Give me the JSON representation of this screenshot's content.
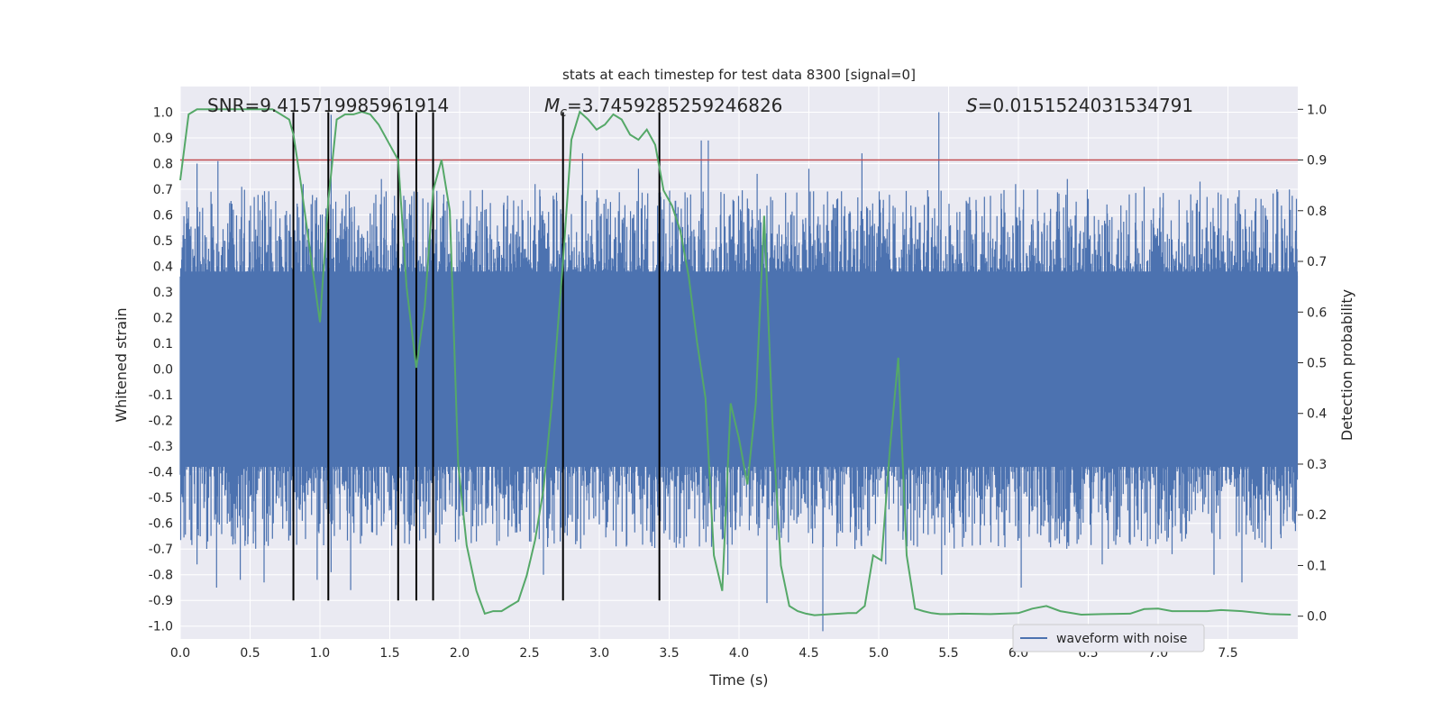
{
  "chart_data": {
    "type": "line",
    "title": "stats at each timestep for test data 8300 [signal=0]",
    "xlabel": "Time (s)",
    "ylabel": "Whitened strain",
    "y2label": "Detection probability",
    "xlim": [
      0.0,
      8.0
    ],
    "ylim": [
      -1.05,
      1.1
    ],
    "y2lim": [
      -0.045,
      1.045
    ],
    "xticks": [
      "0.0",
      "0.5",
      "1.0",
      "1.5",
      "2.0",
      "2.5",
      "3.0",
      "3.5",
      "4.0",
      "4.5",
      "5.0",
      "5.5",
      "6.0",
      "6.5",
      "7.0",
      "7.5"
    ],
    "yticks": [
      "-1.0",
      "-0.9",
      "-0.8",
      "-0.7",
      "-0.6",
      "-0.5",
      "-0.4",
      "-0.3",
      "-0.2",
      "-0.1",
      "0.0",
      "0.1",
      "0.2",
      "0.3",
      "0.4",
      "0.5",
      "0.6",
      "0.7",
      "0.8",
      "0.9",
      "1.0"
    ],
    "y2ticks": [
      "0.0",
      "0.1",
      "0.2",
      "0.3",
      "0.4",
      "0.5",
      "0.6",
      "0.7",
      "0.8",
      "0.9",
      "1.0"
    ],
    "grid": true,
    "legend": {
      "placement": "lower-center-right",
      "entries": [
        "waveform with noise"
      ]
    },
    "annotations": {
      "snr": "SNR=9.415719985961914",
      "mc_symbol": "M",
      "mc_sub": "c",
      "mc_value": "=3.7459285259246826",
      "s_symbol": "S",
      "s_value": "=0.0151524031534791"
    },
    "threshold": {
      "value": 0.9,
      "axis": "y2",
      "color": "#c44e52"
    },
    "markers": [
      0.81,
      1.06,
      1.56,
      1.69,
      1.81,
      2.74,
      3.43
    ],
    "marker_range": [
      -0.9,
      1.0
    ],
    "colors": {
      "waveform": "#4c72b0",
      "probability": "#55a868",
      "threshold": "#c44e52",
      "markers": "#000000",
      "background": "#eaeaf2"
    },
    "series": [
      {
        "name": "waveform with noise",
        "axis": "y",
        "envelope_notes": "dense noisy waveform; core amplitude about 0.4, spikes up to about 1.0",
        "peaks": [
          [
            0.06,
            0.63
          ],
          [
            0.12,
            0.8
          ],
          [
            0.27,
            0.81
          ],
          [
            0.44,
            0.71
          ],
          [
            0.53,
            0.67
          ],
          [
            0.88,
            0.72
          ],
          [
            1.08,
            0.99
          ],
          [
            1.44,
            0.74
          ],
          [
            2.18,
            0.62
          ],
          [
            2.54,
            0.72
          ],
          [
            2.88,
            0.84
          ],
          [
            3.28,
            0.78
          ],
          [
            3.43,
            0.75
          ],
          [
            3.73,
            0.89
          ],
          [
            3.78,
            0.89
          ],
          [
            4.13,
            0.76
          ],
          [
            4.5,
            0.78
          ],
          [
            4.88,
            0.84
          ],
          [
            5.43,
            1.0
          ],
          [
            5.98,
            0.72
          ],
          [
            6.35,
            0.74
          ],
          [
            6.9,
            0.71
          ],
          [
            7.3,
            0.73
          ],
          [
            7.45,
            0.68
          ],
          [
            7.85,
            0.7
          ]
        ],
        "troughs": [
          [
            0.12,
            -0.76
          ],
          [
            0.26,
            -0.85
          ],
          [
            0.43,
            -0.82
          ],
          [
            0.6,
            -0.83
          ],
          [
            0.98,
            -0.82
          ],
          [
            1.08,
            -0.79
          ],
          [
            1.22,
            -0.86
          ],
          [
            2.6,
            -0.8
          ],
          [
            3.92,
            -0.8
          ],
          [
            4.2,
            -0.91
          ],
          [
            4.6,
            -1.02
          ],
          [
            5.05,
            -0.76
          ],
          [
            5.45,
            -0.8
          ],
          [
            6.02,
            -0.85
          ],
          [
            6.6,
            -0.76
          ],
          [
            7.1,
            -0.72
          ],
          [
            7.4,
            -0.8
          ],
          [
            7.6,
            -0.83
          ]
        ]
      },
      {
        "name": "",
        "axis": "y2",
        "x": [
          0.0,
          0.06,
          0.12,
          0.18,
          0.24,
          0.3,
          0.36,
          0.42,
          0.48,
          0.54,
          0.6,
          0.66,
          0.72,
          0.78,
          0.81,
          0.86,
          0.93,
          1.0,
          1.06,
          1.12,
          1.18,
          1.24,
          1.3,
          1.36,
          1.42,
          1.5,
          1.56,
          1.62,
          1.69,
          1.75,
          1.81,
          1.87,
          1.93,
          1.99,
          2.05,
          2.12,
          2.18,
          2.24,
          2.3,
          2.36,
          2.42,
          2.48,
          2.54,
          2.6,
          2.66,
          2.74,
          2.8,
          2.86,
          2.92,
          2.98,
          3.04,
          3.1,
          3.16,
          3.22,
          3.28,
          3.34,
          3.4,
          3.46,
          3.52,
          3.58,
          3.64,
          3.7,
          3.76,
          3.82,
          3.88,
          3.94,
          4.0,
          4.06,
          4.12,
          4.18,
          4.24,
          4.3,
          4.36,
          4.42,
          4.48,
          4.54,
          4.6,
          4.66,
          4.72,
          4.78,
          4.84,
          4.9,
          4.96,
          5.02,
          5.08,
          5.14,
          5.2,
          5.26,
          5.32,
          5.38,
          5.44,
          5.5,
          5.6,
          5.8,
          6.0,
          6.1,
          6.2,
          6.3,
          6.45,
          6.6,
          6.8,
          6.9,
          7.0,
          7.1,
          7.2,
          7.35,
          7.45,
          7.6,
          7.8,
          7.95
        ],
        "y": [
          0.86,
          0.99,
          1.0,
          1.0,
          1.0,
          1.0,
          1.0,
          1.0,
          1.0,
          1.0,
          1.0,
          1.0,
          0.99,
          0.98,
          0.95,
          0.86,
          0.72,
          0.58,
          0.82,
          0.98,
          0.99,
          0.99,
          0.995,
          0.99,
          0.97,
          0.93,
          0.9,
          0.65,
          0.49,
          0.61,
          0.84,
          0.9,
          0.8,
          0.3,
          0.14,
          0.05,
          0.005,
          0.01,
          0.01,
          0.02,
          0.03,
          0.08,
          0.15,
          0.25,
          0.42,
          0.7,
          0.94,
          0.995,
          0.98,
          0.96,
          0.97,
          0.99,
          0.98,
          0.95,
          0.94,
          0.96,
          0.93,
          0.84,
          0.81,
          0.76,
          0.67,
          0.54,
          0.43,
          0.12,
          0.05,
          0.42,
          0.35,
          0.26,
          0.42,
          0.79,
          0.38,
          0.1,
          0.02,
          0.01,
          0.005,
          0.002,
          0.003,
          0.004,
          0.005,
          0.006,
          0.006,
          0.02,
          0.12,
          0.11,
          0.33,
          0.51,
          0.12,
          0.015,
          0.01,
          0.006,
          0.004,
          0.004,
          0.005,
          0.004,
          0.006,
          0.015,
          0.02,
          0.01,
          0.003,
          0.004,
          0.005,
          0.014,
          0.015,
          0.01,
          0.01,
          0.01,
          0.012,
          0.01,
          0.004,
          0.003
        ]
      }
    ]
  }
}
